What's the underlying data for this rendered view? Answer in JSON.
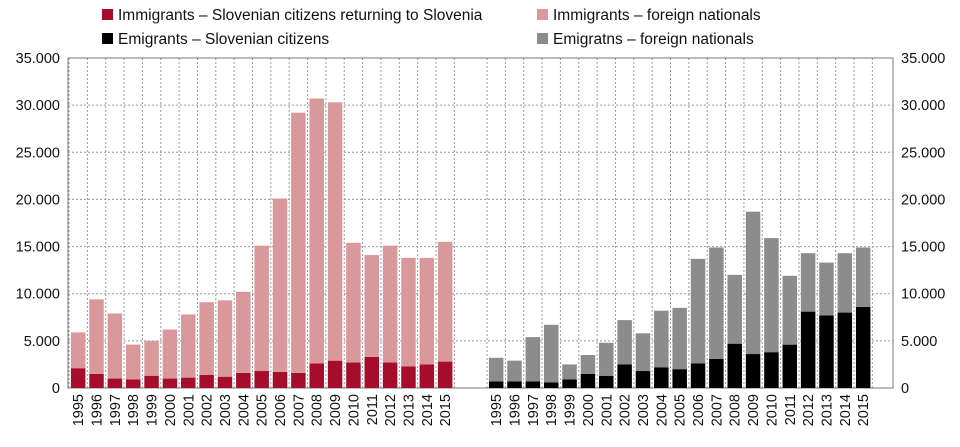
{
  "chart_data": {
    "type": "bar",
    "stacked": true,
    "grid": true,
    "legend_position": "top",
    "ylim": [
      0,
      35000
    ],
    "y_ticks": [
      "0",
      "5.000",
      "10.000",
      "15.000",
      "20.000",
      "25.000",
      "30.000",
      "35.000"
    ],
    "categories": [
      "1995",
      "1996",
      "1997",
      "1998",
      "1999",
      "2000",
      "2001",
      "2002",
      "2003",
      "2004",
      "2005",
      "2006",
      "2007",
      "2008",
      "2009",
      "2010",
      "2011",
      "2012",
      "2013",
      "2014",
      "2015"
    ],
    "panels": [
      {
        "name": "immigrants",
        "series": [
          {
            "name": "Immigrants – Slovenian citizens returning to Slovenia",
            "color": "#a50d2a",
            "values": [
              2100,
              1500,
              1000,
              900,
              1300,
              1000,
              1100,
              1400,
              1200,
              1600,
              1800,
              1700,
              1600,
              2600,
              2900,
              2700,
              3300,
              2700,
              2300,
              2500,
              2800
            ]
          },
          {
            "name": "Immigrants – foreign nationals",
            "color": "#d9989c",
            "values": [
              3800,
              7900,
              6900,
              3700,
              3700,
              5200,
              6700,
              7700,
              8100,
              8600,
              13300,
              18400,
              27600,
              28100,
              27400,
              12700,
              10800,
              12400,
              11500,
              11300,
              12700
            ]
          }
        ]
      },
      {
        "name": "emigrants",
        "series": [
          {
            "name": "Emigrants – Slovenian citizens",
            "color": "#000000",
            "values": [
              700,
              700,
              700,
              600,
              900,
              1500,
              1300,
              2500,
              1800,
              2200,
              2000,
              2600,
              3100,
              4700,
              3600,
              3800,
              4600,
              8100,
              7700,
              8000,
              8600
            ]
          },
          {
            "name": "Emigratns – foreign nationals",
            "color": "#8c8c8c",
            "values": [
              2500,
              2200,
              4700,
              6100,
              1600,
              2000,
              3500,
              4700,
              4000,
              6000,
              6500,
              11100,
              11800,
              7300,
              15100,
              12100,
              7300,
              6200,
              5600,
              6300,
              6300
            ]
          }
        ]
      }
    ]
  }
}
